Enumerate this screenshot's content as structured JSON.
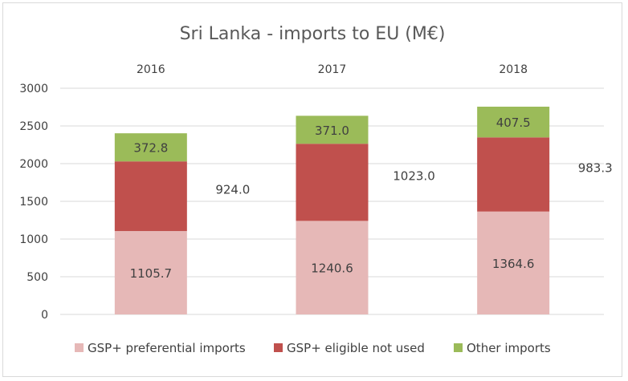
{
  "chart_data": {
    "type": "bar",
    "stacked": true,
    "title": "Sri Lanka - imports to EU (M€)",
    "categories": [
      "2016",
      "2017",
      "2018"
    ],
    "category_labels_position": "top",
    "ylim": [
      0,
      3000
    ],
    "yticks": [
      0,
      500,
      1000,
      1500,
      2000,
      2500,
      3000
    ],
    "grid": true,
    "legend_position": "bottom",
    "series": [
      {
        "name": "GSP+ preferential imports",
        "values": [
          1105.7,
          1240.6,
          1364.6
        ],
        "value_labels": [
          "1105.7",
          "1240.6",
          "1364.6"
        ],
        "color": "#e6b8b7"
      },
      {
        "name": "GSP+ eligible not used",
        "values": [
          924.0,
          1023.0,
          983.3
        ],
        "value_labels": [
          "924.0",
          "1023.0",
          "983.3"
        ],
        "color": "#c0504d"
      },
      {
        "name": "Other imports",
        "values": [
          372.8,
          371.0,
          407.5
        ],
        "value_labels": [
          "372.8",
          "371.0",
          "407.5"
        ],
        "color": "#9bbb59"
      }
    ]
  }
}
